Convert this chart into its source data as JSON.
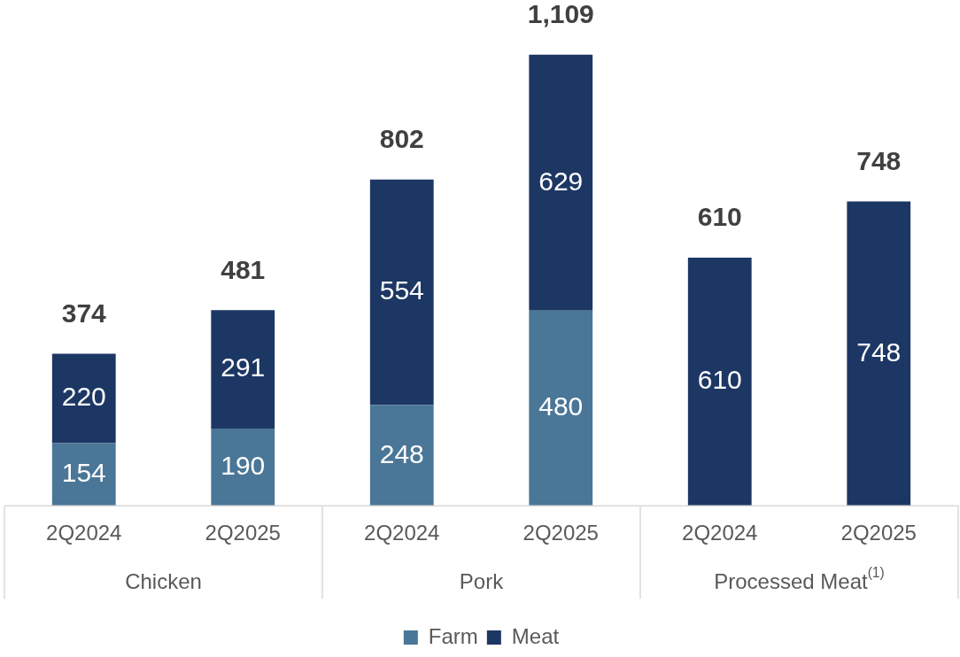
{
  "chart_data": {
    "type": "bar",
    "stacked": true,
    "categories": [
      "2Q2024",
      "2Q2025",
      "2Q2024",
      "2Q2025",
      "2Q2024",
      "2Q2025"
    ],
    "series": [
      {
        "name": "Farm",
        "color": "#4a7697",
        "values": [
          154,
          190,
          248,
          480,
          null,
          null
        ]
      },
      {
        "name": "Meat",
        "color": "#1d3764",
        "values": [
          220,
          291,
          554,
          629,
          610,
          748
        ]
      }
    ],
    "totals": [
      "374",
      "481",
      "802",
      "1,109",
      "610",
      "748"
    ],
    "data_labels": true,
    "grid": false,
    "legend": "bottom",
    "annotations": [
      "Chicken",
      "Pork",
      "Processed Meat$^{(1)}$"
    ]
  }
}
